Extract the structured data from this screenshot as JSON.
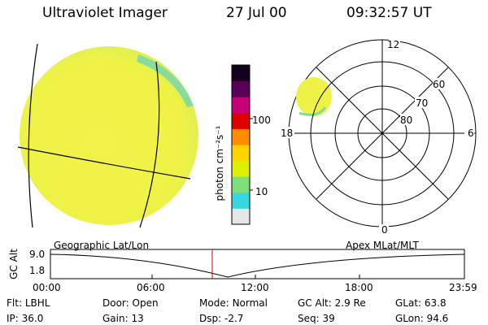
{
  "header": {
    "title": "Ultraviolet Imager",
    "date": "27 Jul 00",
    "time": "09:32:57 UT"
  },
  "colorbar": {
    "label": "photon cm⁻²s⁻¹",
    "ticks": [
      "100",
      "10"
    ],
    "colors": [
      "#e6e6e6",
      "#37d7e0",
      "#7ee07a",
      "#dcf000",
      "#ffd200",
      "#ff8c00",
      "#e00000",
      "#c80078",
      "#5a005a",
      "#14001e"
    ]
  },
  "polar": {
    "labels": [
      "12",
      "60",
      "70",
      "80",
      "18",
      "6",
      "0"
    ]
  },
  "timeline": {
    "left_label": "Geographic Lat/Lon",
    "right_label": "Apex MLat/MLT",
    "axis_label": "GC Alt",
    "y_ticks": [
      "9.0",
      "1.8"
    ],
    "x_ticks": [
      "00:00",
      "06:00",
      "12:00",
      "18:00",
      "23:59"
    ]
  },
  "info": {
    "row1": [
      {
        "key": "Flt:",
        "value": "LBHL"
      },
      {
        "key": "Door:",
        "value": "Open"
      },
      {
        "key": "Mode:",
        "value": "Normal"
      },
      {
        "key": "GC Alt:",
        "value": "2.9 Re"
      },
      {
        "key": "GLat:",
        "value": "63.8"
      }
    ],
    "row2": [
      {
        "key": "IP:",
        "value": "36.0"
      },
      {
        "key": "Gain:",
        "value": "13"
      },
      {
        "key": "Dsp:",
        "value": "-2.7"
      },
      {
        "key": "Seq:",
        "value": "39"
      },
      {
        "key": "GLon:",
        "value": "94.6"
      }
    ]
  }
}
